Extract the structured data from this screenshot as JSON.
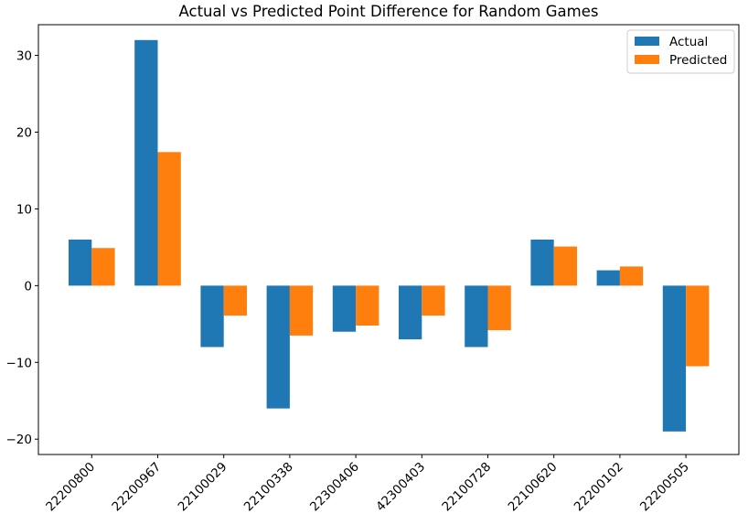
{
  "chart_data": {
    "type": "bar",
    "title": "Actual vs Predicted Point Difference for Random Games",
    "xlabel": "",
    "ylabel": "",
    "categories": [
      "22200800",
      "22200967",
      "22100029",
      "22100338",
      "22300406",
      "42300403",
      "22100728",
      "22100620",
      "22200102",
      "22200505"
    ],
    "series": [
      {
        "name": "Actual",
        "color": "#1f77b4",
        "values": [
          6,
          32,
          -8,
          -16,
          -6,
          -7,
          -8,
          6,
          2,
          -19
        ]
      },
      {
        "name": "Predicted",
        "color": "#ff7f0e",
        "values": [
          4.9,
          17.4,
          -3.9,
          -6.5,
          -5.2,
          -3.9,
          -5.8,
          5.1,
          2.5,
          -10.5
        ]
      }
    ],
    "ylim": [
      -22,
      34
    ],
    "yticks": [
      -20,
      -10,
      0,
      10,
      20,
      30
    ],
    "grid": false,
    "legend_position": "upper right"
  }
}
